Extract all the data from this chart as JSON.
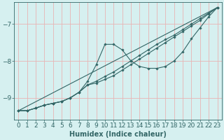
{
  "xlabel": "Humidex (Indice chaleur)",
  "ylabel": "",
  "xlim": [
    -0.5,
    23.5
  ],
  "ylim": [
    -9.6,
    -6.4
  ],
  "background_color": "#d6f0f0",
  "grid_color": "#e8b4b4",
  "line_color": "#336666",
  "lines": [
    {
      "x": [
        0,
        1,
        2,
        3,
        4,
        5,
        6,
        7,
        8,
        9,
        10,
        11,
        12,
        13,
        14,
        15,
        16,
        17,
        18,
        19,
        20,
        21,
        22,
        23
      ],
      "y": [
        -9.35,
        -9.35,
        -9.28,
        -9.2,
        -9.15,
        -9.1,
        -9.0,
        -8.85,
        -8.55,
        -8.1,
        -7.55,
        -7.55,
        -7.7,
        -8.0,
        -8.15,
        -8.2,
        -8.2,
        -8.15,
        -8.0,
        -7.75,
        -7.4,
        -7.1,
        -6.8,
        -6.55
      ]
    },
    {
      "x": [
        0,
        1,
        2,
        3,
        4,
        5,
        6,
        7,
        8,
        9,
        10,
        11,
        12,
        13,
        14,
        15,
        16,
        17,
        18,
        19,
        20,
        21,
        22,
        23
      ],
      "y": [
        -9.35,
        -9.35,
        -9.28,
        -9.2,
        -9.15,
        -9.1,
        -9.0,
        -8.85,
        -8.65,
        -8.55,
        -8.42,
        -8.3,
        -8.15,
        -8.0,
        -7.85,
        -7.7,
        -7.55,
        -7.42,
        -7.3,
        -7.15,
        -7.0,
        -6.85,
        -6.7,
        -6.55
      ]
    },
    {
      "x": [
        0,
        1,
        2,
        3,
        4,
        5,
        6,
        7,
        8,
        9,
        10,
        11,
        12,
        13,
        14,
        15,
        16,
        17,
        18,
        19,
        20,
        21,
        22,
        23
      ],
      "y": [
        -9.35,
        -9.35,
        -9.28,
        -9.2,
        -9.15,
        -9.1,
        -9.0,
        -8.85,
        -8.65,
        -8.6,
        -8.5,
        -8.4,
        -8.25,
        -8.1,
        -7.95,
        -7.8,
        -7.65,
        -7.5,
        -7.35,
        -7.2,
        -7.05,
        -6.9,
        -6.72,
        -6.55
      ]
    },
    {
      "x": [
        0,
        23
      ],
      "y": [
        -9.35,
        -6.55
      ]
    }
  ],
  "yticks": [
    -9,
    -8,
    -7
  ],
  "xticks": [
    0,
    1,
    2,
    3,
    4,
    5,
    6,
    7,
    8,
    9,
    10,
    11,
    12,
    13,
    14,
    15,
    16,
    17,
    18,
    19,
    20,
    21,
    22,
    23
  ],
  "tick_color": "#336666",
  "label_color": "#336666",
  "fontsize": 6.5
}
